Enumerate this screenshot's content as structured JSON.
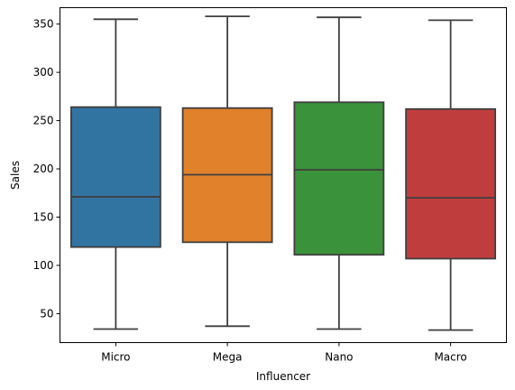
{
  "chart_data": {
    "type": "box",
    "xlabel": "Influencer",
    "ylabel": "Sales",
    "ylim": [
      20,
      367
    ],
    "yticks": [
      50,
      100,
      150,
      200,
      250,
      300,
      350
    ],
    "grid": false,
    "legend": "none",
    "categories": [
      "Micro",
      "Mega",
      "Nano",
      "Macro"
    ],
    "colors": [
      "#3274a1",
      "#e1812c",
      "#3a923a",
      "#c03d3e"
    ],
    "boxes": [
      {
        "category": "Micro",
        "min": 34,
        "q1": 119,
        "median": 171,
        "q3": 264,
        "max": 355
      },
      {
        "category": "Mega",
        "min": 37,
        "q1": 124,
        "median": 194,
        "q3": 263,
        "max": 358
      },
      {
        "category": "Nano",
        "min": 34,
        "q1": 111,
        "median": 199,
        "q3": 269,
        "max": 357
      },
      {
        "category": "Macro",
        "min": 33,
        "q1": 107,
        "median": 170,
        "q3": 262,
        "max": 354
      }
    ]
  }
}
